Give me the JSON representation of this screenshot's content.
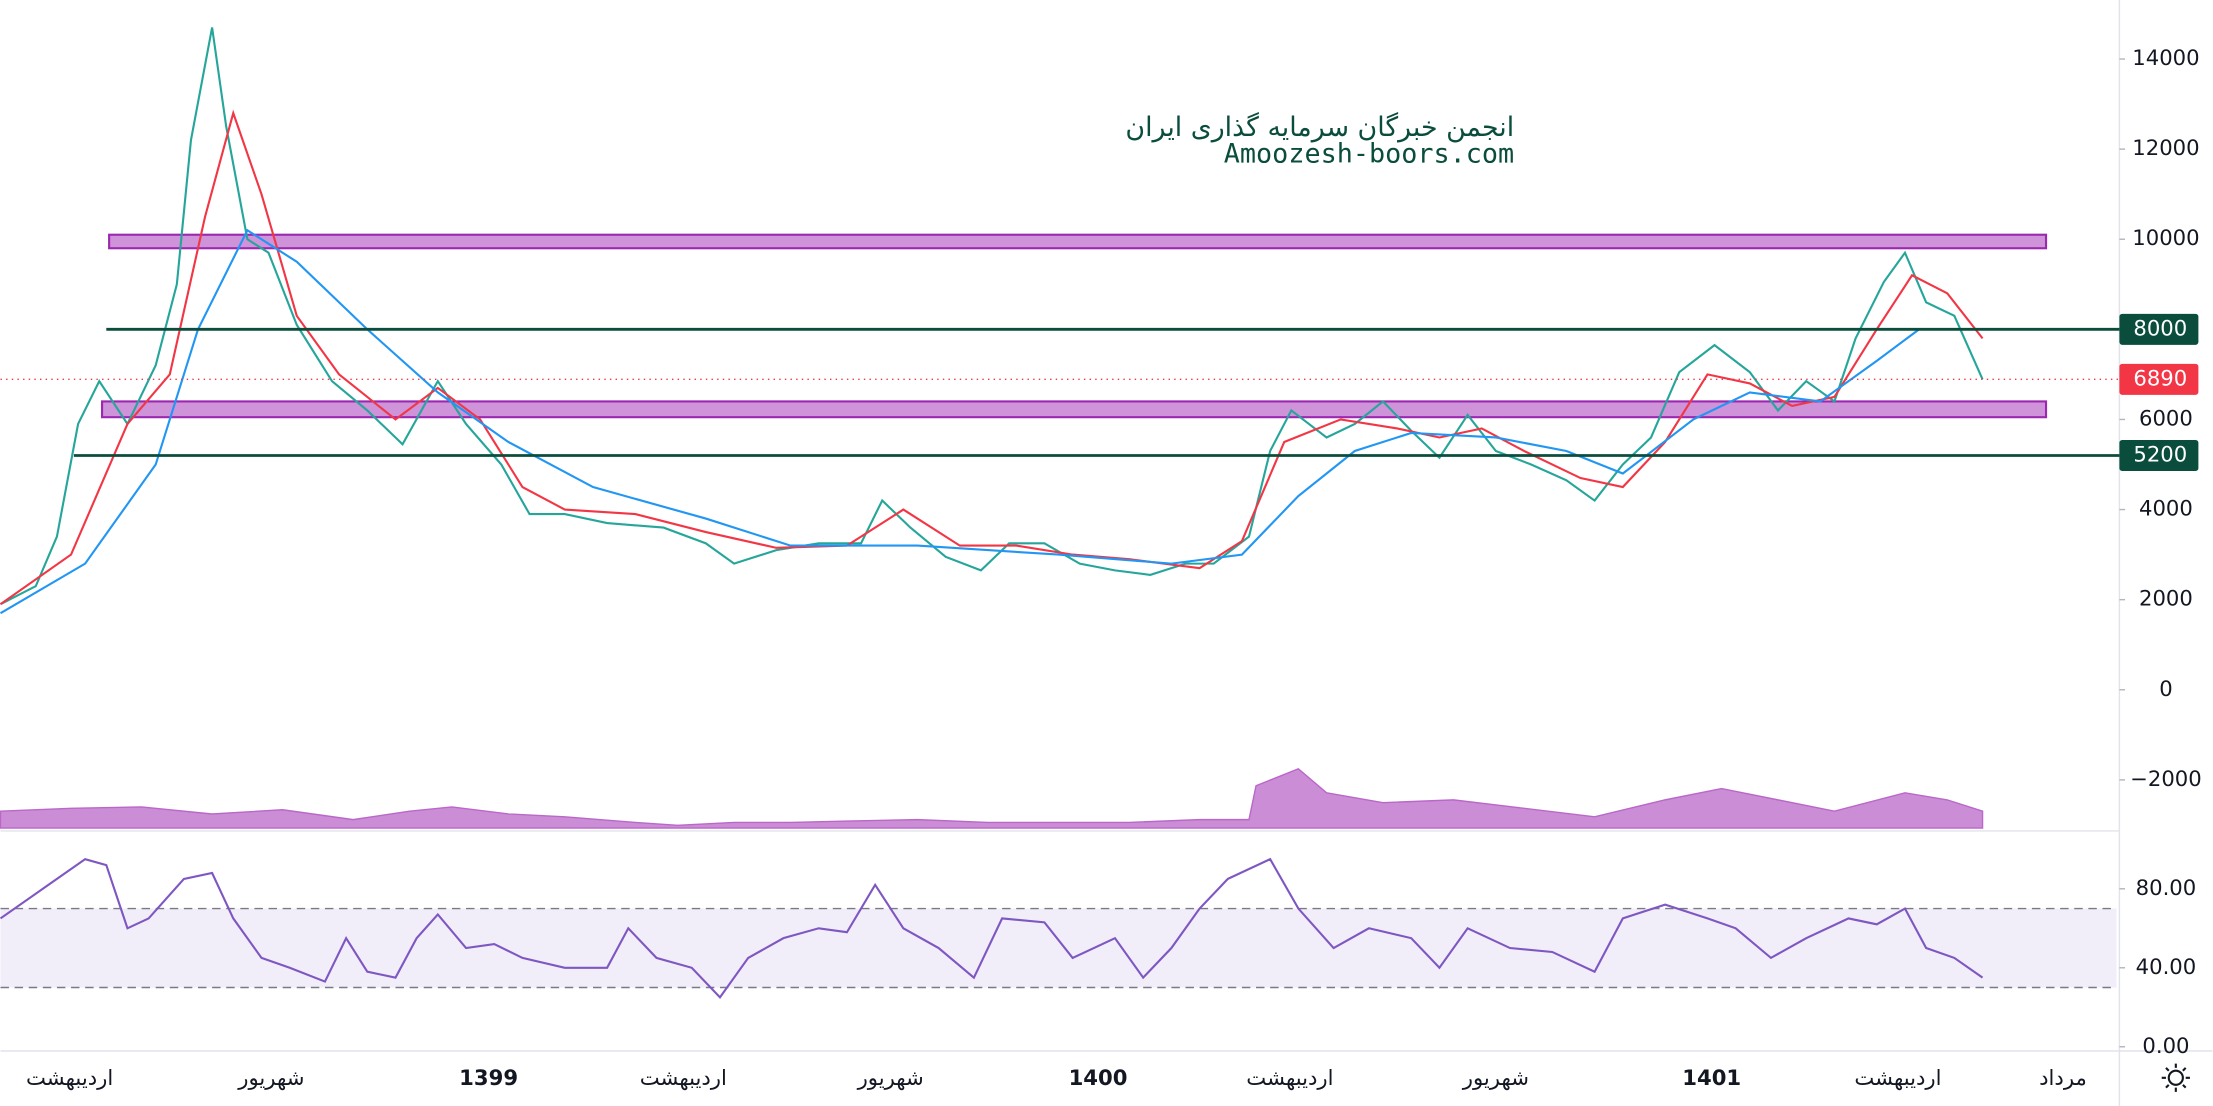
{
  "watermark": {
    "line1": "انجمن خبرگان سرمایه گذاری ایران",
    "line2": "Amoozesh-boors.com"
  },
  "chart_data": [
    {
      "type": "line",
      "xlim": [
        0,
        150
      ],
      "ylim": [
        -3070,
        15310
      ],
      "yticks": [
        14000,
        12000,
        10000,
        6000,
        4000,
        2000,
        0,
        {
          "value": -2000,
          "label": "−2000"
        }
      ],
      "series": [
        {
          "color": "#26a69a",
          "x": [
            0,
            2.5,
            4,
            5.5,
            7,
            9,
            11,
            12.5,
            13.5,
            15,
            16,
            17.5,
            19,
            21,
            23.5,
            26,
            28.5,
            31,
            33,
            35.5,
            37.5,
            40,
            43,
            47,
            50,
            52,
            55,
            58,
            61,
            62.5,
            64.5,
            67,
            69.5,
            71.5,
            74,
            76.5,
            79,
            81.5,
            84,
            86,
            88.5,
            90,
            91.5,
            94,
            96,
            98,
            100,
            102,
            104,
            106,
            108.5,
            111,
            113,
            115,
            117,
            119,
            121.5,
            124,
            126,
            128,
            130,
            131.5,
            133.5,
            135,
            136.5,
            138.5,
            140.5
          ],
          "values": [
            1900,
            2300,
            3400,
            5900,
            6850,
            5900,
            7200,
            9000,
            12200,
            14700,
            12500,
            10000,
            9700,
            8100,
            6850,
            6200,
            5450,
            6850,
            5900,
            5000,
            3900,
            3900,
            3700,
            3600,
            3250,
            2800,
            3100,
            3250,
            3250,
            4200,
            3600,
            2950,
            2650,
            3250,
            3250,
            2800,
            2650,
            2550,
            2800,
            2800,
            3400,
            5300,
            6200,
            5600,
            5900,
            6400,
            5750,
            5150,
            6100,
            5300,
            5000,
            4650,
            4200,
            5000,
            5600,
            7050,
            7650,
            7050,
            6200,
            6850,
            6400,
            7800,
            9050,
            9700,
            8600,
            8300,
            6890
          ]
        },
        {
          "color": "#f23645",
          "x": [
            0,
            5,
            9,
            12,
            14.5,
            16.5,
            18.5,
            21,
            24,
            28,
            31,
            34,
            37,
            40,
            45,
            50,
            55,
            60,
            64,
            68,
            72,
            76,
            80,
            85,
            88,
            91,
            95,
            99,
            102,
            105,
            108,
            112,
            115,
            118,
            121,
            124,
            127,
            130,
            133,
            135.5,
            138,
            140.5
          ],
          "values": [
            1900,
            3000,
            5900,
            7000,
            10500,
            12800,
            11000,
            8300,
            7000,
            6000,
            6700,
            6000,
            4500,
            4000,
            3900,
            3500,
            3150,
            3200,
            4000,
            3200,
            3200,
            3000,
            2900,
            2700,
            3300,
            5500,
            6000,
            5800,
            5600,
            5800,
            5300,
            4700,
            4500,
            5500,
            7000,
            6800,
            6300,
            6500,
            8000,
            9200,
            8800,
            7800
          ]
        },
        {
          "color": "#2196f3",
          "x": [
            0,
            6,
            11,
            14,
            17.5,
            21,
            26,
            31,
            36,
            42,
            50,
            56,
            65,
            75,
            83,
            88,
            92,
            96,
            100,
            106,
            111,
            115,
            120,
            124,
            129,
            133,
            136,
            140.5
          ],
          "values": [
            1700,
            2800,
            5000,
            8000,
            10200,
            9500,
            8000,
            6600,
            5500,
            4500,
            3800,
            3200,
            3200,
            3000,
            2800,
            3000,
            4300,
            5300,
            5700,
            5600,
            5300,
            4800,
            6000,
            6600,
            6400,
            7300,
            8000,
            8000
          ]
        }
      ],
      "levels": [
        {
          "value": 8000,
          "x_from": 7.5,
          "color": "#0b4d3c"
        },
        {
          "value": 5200,
          "x_from": 5.2,
          "color": "#0b4d3c"
        }
      ],
      "zones": [
        {
          "from": 9800,
          "to": 10100,
          "x_from": 7.7,
          "x_to": 145,
          "color": "#ce93d8"
        },
        {
          "from": 6050,
          "to": 6400,
          "x_from": 7.2,
          "x_to": 145,
          "color": "#ce93d8"
        }
      ],
      "last_price": 6890,
      "last_price_color": "#f23645"
    },
    {
      "type": "area",
      "xlim": [
        0,
        150
      ],
      "ylim": [
        0,
        100
      ],
      "color": "#ba68c8",
      "x": [
        0,
        5,
        10,
        15,
        20,
        25,
        29,
        32,
        36,
        40,
        45,
        48,
        52,
        56,
        60,
        65,
        70,
        75,
        80,
        85,
        88.5,
        89,
        92,
        94,
        98,
        103,
        108,
        113,
        118,
        122,
        126,
        130,
        135,
        138,
        140.5
      ],
      "values": [
        12,
        14,
        15,
        10,
        13,
        6,
        12,
        15,
        10,
        8,
        4,
        2,
        4,
        4,
        5,
        6,
        4,
        4,
        4,
        6,
        6,
        30,
        42,
        25,
        18,
        20,
        14,
        8,
        20,
        28,
        20,
        12,
        25,
        20,
        12
      ]
    },
    {
      "type": "line",
      "xlim": [
        0,
        150
      ],
      "ylim": [
        0,
        108.6
      ],
      "color": "#7e57c2",
      "bands": [
        30,
        70
      ],
      "yticks": [
        {
          "value": 80,
          "label": "80.00"
        },
        {
          "value": 40,
          "label": "40.00"
        },
        {
          "value": 0,
          "label": "0.00"
        }
      ],
      "xticks": [
        {
          "value": 4.9,
          "label": "اردیبهشت"
        },
        {
          "value": 19.2,
          "label": "شهریور"
        },
        {
          "value": 34.6,
          "label": "1399"
        },
        {
          "value": 48.4,
          "label": "اردیبهشت"
        },
        {
          "value": 63.1,
          "label": "شهریور"
        },
        {
          "value": 77.8,
          "label": "1400"
        },
        {
          "value": 91.4,
          "label": "اردیبهشت"
        },
        {
          "value": 106,
          "label": "شهریور"
        },
        {
          "value": 121.3,
          "label": "1401"
        },
        {
          "value": 134.5,
          "label": "اردیبهشت"
        },
        {
          "value": 146.2,
          "label": "مرداد"
        }
      ],
      "x": [
        0,
        3,
        6,
        7.5,
        9,
        10.5,
        13,
        15,
        16.5,
        18.5,
        20.5,
        23,
        24.5,
        26,
        28,
        29.5,
        31,
        33,
        35,
        37,
        40,
        43,
        44.5,
        46.5,
        49,
        51,
        53,
        55.5,
        58,
        60,
        62,
        64,
        66.5,
        69,
        71,
        74,
        76,
        79,
        81,
        83,
        85,
        87,
        90,
        92,
        94.5,
        97,
        100,
        102,
        104,
        107,
        110,
        113,
        115,
        118,
        121,
        123,
        125.5,
        128,
        131,
        133,
        135,
        136.5,
        138.5,
        140.5
      ],
      "values": [
        65,
        80,
        95,
        92,
        60,
        65,
        85,
        88,
        65,
        45,
        40,
        33,
        55,
        38,
        35,
        55,
        67,
        50,
        52,
        45,
        40,
        40,
        60,
        45,
        40,
        25,
        45,
        55,
        60,
        58,
        82,
        60,
        50,
        35,
        65,
        63,
        45,
        55,
        35,
        50,
        70,
        85,
        95,
        70,
        50,
        60,
        55,
        40,
        60,
        50,
        48,
        38,
        65,
        72,
        65,
        60,
        45,
        55,
        65,
        62,
        70,
        50,
        45,
        35
      ]
    }
  ]
}
